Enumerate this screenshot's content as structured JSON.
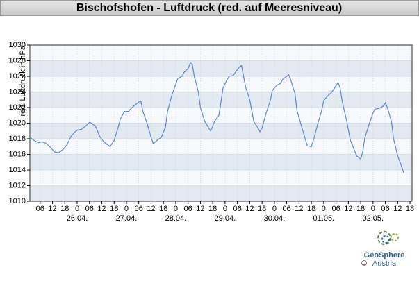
{
  "chart_data": {
    "type": "line",
    "title": "Bischofshofen - Luftdruck (red. auf Meeresniveau)",
    "y_label": "red. Luftdruck in hPa",
    "color": "#5a87d6",
    "grid": true,
    "x": [
      25,
      27,
      29,
      31,
      33,
      35,
      37,
      39,
      41,
      43,
      45,
      47,
      48,
      50,
      52,
      54,
      55,
      57,
      59,
      61,
      63,
      64,
      66,
      68,
      69,
      71,
      73,
      74,
      76,
      78,
      79,
      80,
      82,
      84,
      85,
      87,
      89,
      91,
      92,
      94,
      96,
      97,
      99,
      100,
      102,
      103,
      104,
      105,
      107,
      108,
      110,
      112,
      113,
      115,
      117,
      118,
      119,
      121,
      122,
      124,
      125,
      127,
      128,
      129,
      130,
      132,
      134,
      136,
      137,
      138,
      140,
      142,
      143,
      145,
      147,
      148,
      150,
      151,
      152,
      154,
      155,
      157,
      159,
      160,
      162,
      163,
      165,
      167,
      168,
      170,
      172,
      173,
      175,
      176,
      177,
      179,
      181,
      183,
      184,
      186,
      187,
      188,
      190,
      192,
      193,
      195,
      197,
      198,
      199,
      201,
      202,
      204,
      206,
      207
    ],
    "values": [
      1018.2,
      1017.8,
      1017.5,
      1017.6,
      1017.4,
      1016.9,
      1016.3,
      1016.2,
      1016.6,
      1017.2,
      1018.3,
      1018.9,
      1019.1,
      1019.2,
      1019.6,
      1020.1,
      1020.0,
      1019.6,
      1018.3,
      1017.6,
      1017.2,
      1017.0,
      1017.8,
      1019.5,
      1020.5,
      1021.5,
      1021.5,
      1021.8,
      1022.3,
      1022.7,
      1022.8,
      1021.5,
      1020.0,
      1018.2,
      1017.4,
      1017.8,
      1018.2,
      1019.5,
      1021.5,
      1023.5,
      1025.0,
      1025.7,
      1026.0,
      1026.5,
      1027.0,
      1027.7,
      1027.6,
      1026.0,
      1024.0,
      1022.0,
      1020.3,
      1019.4,
      1019.0,
      1020.3,
      1021.0,
      1022.7,
      1024.5,
      1025.6,
      1026.0,
      1026.1,
      1026.5,
      1027.2,
      1027.4,
      1026.0,
      1024.6,
      1023.0,
      1020.2,
      1019.4,
      1018.9,
      1019.4,
      1021.3,
      1022.9,
      1024.2,
      1024.8,
      1025.1,
      1025.6,
      1026.0,
      1026.2,
      1025.5,
      1023.8,
      1021.6,
      1019.8,
      1018.0,
      1017.1,
      1017.0,
      1017.8,
      1019.8,
      1021.6,
      1022.9,
      1023.5,
      1024.0,
      1024.4,
      1025.2,
      1024.5,
      1022.8,
      1020.5,
      1017.8,
      1016.5,
      1015.8,
      1015.4,
      1016.3,
      1018.1,
      1019.8,
      1021.3,
      1021.8,
      1021.9,
      1022.2,
      1022.6,
      1022.0,
      1020.2,
      1018.0,
      1015.8,
      1014.4,
      1013.6
    ],
    "xlim": [
      25,
      211
    ],
    "ylim": [
      1010,
      1030
    ],
    "yticks": [
      1010,
      1012,
      1014,
      1016,
      1018,
      1020,
      1022,
      1024,
      1026,
      1028,
      1030
    ],
    "xticks": [
      {
        "value": 30,
        "label": "06"
      },
      {
        "value": 36,
        "label": "12"
      },
      {
        "value": 42,
        "label": "18"
      },
      {
        "value": 48,
        "label": "0"
      },
      {
        "value": 54,
        "label": "06"
      },
      {
        "value": 60,
        "label": "12"
      },
      {
        "value": 66,
        "label": "18"
      },
      {
        "value": 72,
        "label": "0"
      },
      {
        "value": 78,
        "label": "06"
      },
      {
        "value": 84,
        "label": "12"
      },
      {
        "value": 90,
        "label": "18"
      },
      {
        "value": 96,
        "label": "0"
      },
      {
        "value": 102,
        "label": "06"
      },
      {
        "value": 108,
        "label": "12"
      },
      {
        "value": 114,
        "label": "18"
      },
      {
        "value": 120,
        "label": "0"
      },
      {
        "value": 126,
        "label": "06"
      },
      {
        "value": 132,
        "label": "12"
      },
      {
        "value": 138,
        "label": "18"
      },
      {
        "value": 144,
        "label": "0"
      },
      {
        "value": 150,
        "label": "06"
      },
      {
        "value": 156,
        "label": "12"
      },
      {
        "value": 162,
        "label": "18"
      },
      {
        "value": 168,
        "label": "0"
      },
      {
        "value": 174,
        "label": "06"
      },
      {
        "value": 180,
        "label": "12"
      },
      {
        "value": 186,
        "label": "18"
      },
      {
        "value": 192,
        "label": "0"
      },
      {
        "value": 198,
        "label": "06"
      },
      {
        "value": 204,
        "label": "12"
      },
      {
        "value": 210,
        "label": "18"
      }
    ],
    "x_date_ticks": [
      {
        "value": 48,
        "label": "26.04."
      },
      {
        "value": 72,
        "label": "27.04."
      },
      {
        "value": 96,
        "label": "28.04."
      },
      {
        "value": 120,
        "label": "29.04."
      },
      {
        "value": 144,
        "label": "30.04."
      },
      {
        "value": 168,
        "label": "01.05."
      },
      {
        "value": 192,
        "label": "02.05."
      }
    ],
    "logo": {
      "name": "GeoSphere",
      "sub": "Austria",
      "copyright": "©"
    }
  }
}
